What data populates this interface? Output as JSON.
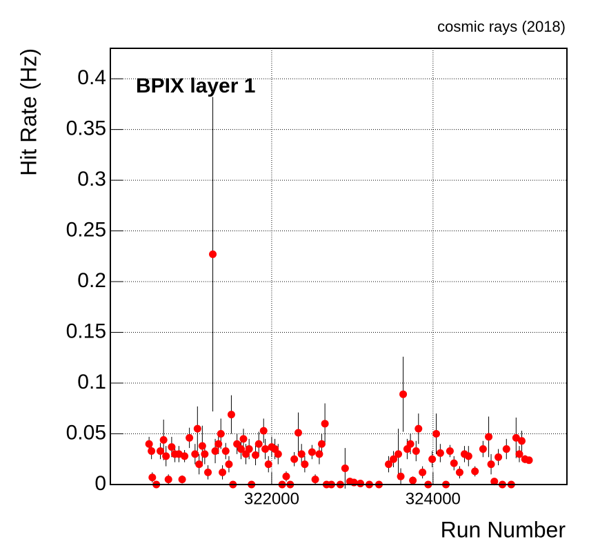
{
  "chart_data": {
    "type": "scatter",
    "title": "cosmic rays (2018)",
    "annotation": "BPIX layer 1",
    "x_label": "Run Number",
    "y_label": "Hit Rate (Hz)",
    "color": "#ff0000",
    "error_color": "#000000",
    "grid": true,
    "xlim": [
      320000,
      325660
    ],
    "ylim": [
      0,
      0.43
    ],
    "xticks": [
      322000,
      324000
    ],
    "yticks": [
      0,
      0.05,
      0.1,
      0.15,
      0.2,
      0.25,
      0.3,
      0.35,
      0.4
    ],
    "x": [
      320480,
      320510,
      320520,
      320570,
      320620,
      320660,
      320690,
      320720,
      320760,
      320800,
      320850,
      320890,
      320920,
      320980,
      321050,
      321080,
      321100,
      321140,
      321170,
      321210,
      321270,
      321300,
      321340,
      321370,
      321390,
      321430,
      321470,
      321500,
      321520,
      321570,
      321620,
      321650,
      321680,
      321720,
      321750,
      321800,
      321840,
      321900,
      321920,
      321960,
      322000,
      322040,
      322080,
      322130,
      322180,
      322230,
      322280,
      322330,
      322370,
      322410,
      322500,
      322540,
      322590,
      322620,
      322660,
      322680,
      322740,
      322850,
      322910,
      322970,
      323020,
      323100,
      323210,
      323330,
      323450,
      323510,
      323570,
      323600,
      323630,
      323680,
      323720,
      323750,
      323790,
      323820,
      323870,
      323940,
      323990,
      324040,
      324090,
      324160,
      324210,
      324260,
      324330,
      324390,
      324440,
      324520,
      324620,
      324690,
      324720,
      324760,
      324810,
      324860,
      324910,
      324970,
      325030,
      325070,
      325100,
      325140,
      325190
    ],
    "values": [
      0.04,
      0.033,
      0.007,
      0,
      0.033,
      0.044,
      0.028,
      0.005,
      0.037,
      0.03,
      0.03,
      0.005,
      0.028,
      0.046,
      0.03,
      0.055,
      0.02,
      0.038,
      0.03,
      0.012,
      0.227,
      0.033,
      0.04,
      0.05,
      0.012,
      0.033,
      0.02,
      0.069,
      0,
      0.04,
      0.035,
      0.045,
      0.03,
      0.035,
      0,
      0.029,
      0.04,
      0.053,
      0.035,
      0.02,
      0.037,
      0.035,
      0.03,
      0,
      0.008,
      0,
      0.025,
      0.051,
      0.03,
      0.02,
      0.032,
      0.005,
      0.03,
      0.04,
      0.06,
      0,
      0,
      0,
      0.016,
      0.003,
      0.002,
      0.001,
      0,
      0,
      0.02,
      0.025,
      0.03,
      0.008,
      0.089,
      0.035,
      0.04,
      0.004,
      0.033,
      0.055,
      0.012,
      0,
      0.025,
      0.05,
      0.031,
      0,
      0.033,
      0.021,
      0.012,
      0.03,
      0.028,
      0.013,
      0.035,
      0.047,
      0.02,
      0.003,
      0.027,
      0,
      0.035,
      0,
      0.046,
      0.03,
      0.043,
      0.025,
      0.024
    ],
    "errors": [
      0.007,
      0.008,
      0.005,
      0,
      0.008,
      0.02,
      0.01,
      0.005,
      0.01,
      0.008,
      0.008,
      0.004,
      0.006,
      0.01,
      0.01,
      0.022,
      0.01,
      0.02,
      0.01,
      0.007,
      0.155,
      0.012,
      0.01,
      0.015,
      0.007,
      0.008,
      0.008,
      0.019,
      0,
      0.01,
      0.01,
      0.01,
      0.01,
      0.01,
      0,
      0.01,
      0.012,
      0.012,
      0.01,
      0.008,
      0.01,
      0.01,
      0.01,
      0,
      0.005,
      0,
      0.007,
      0.02,
      0.01,
      0.008,
      0.007,
      0.005,
      0.01,
      0.01,
      0.02,
      0,
      0,
      0,
      0.02,
      0.003,
      0.002,
      0.001,
      0,
      0,
      0.008,
      0.008,
      0.025,
      0.008,
      0.037,
      0.01,
      0.01,
      0.004,
      0.01,
      0.015,
      0.006,
      0,
      0.008,
      0.02,
      0.009,
      0,
      0.006,
      0.007,
      0.006,
      0.008,
      0.01,
      0.005,
      0.008,
      0.02,
      0.01,
      0.003,
      0.008,
      0,
      0.01,
      0,
      0.02,
      0.008,
      0.01,
      0.004,
      0.003
    ]
  }
}
